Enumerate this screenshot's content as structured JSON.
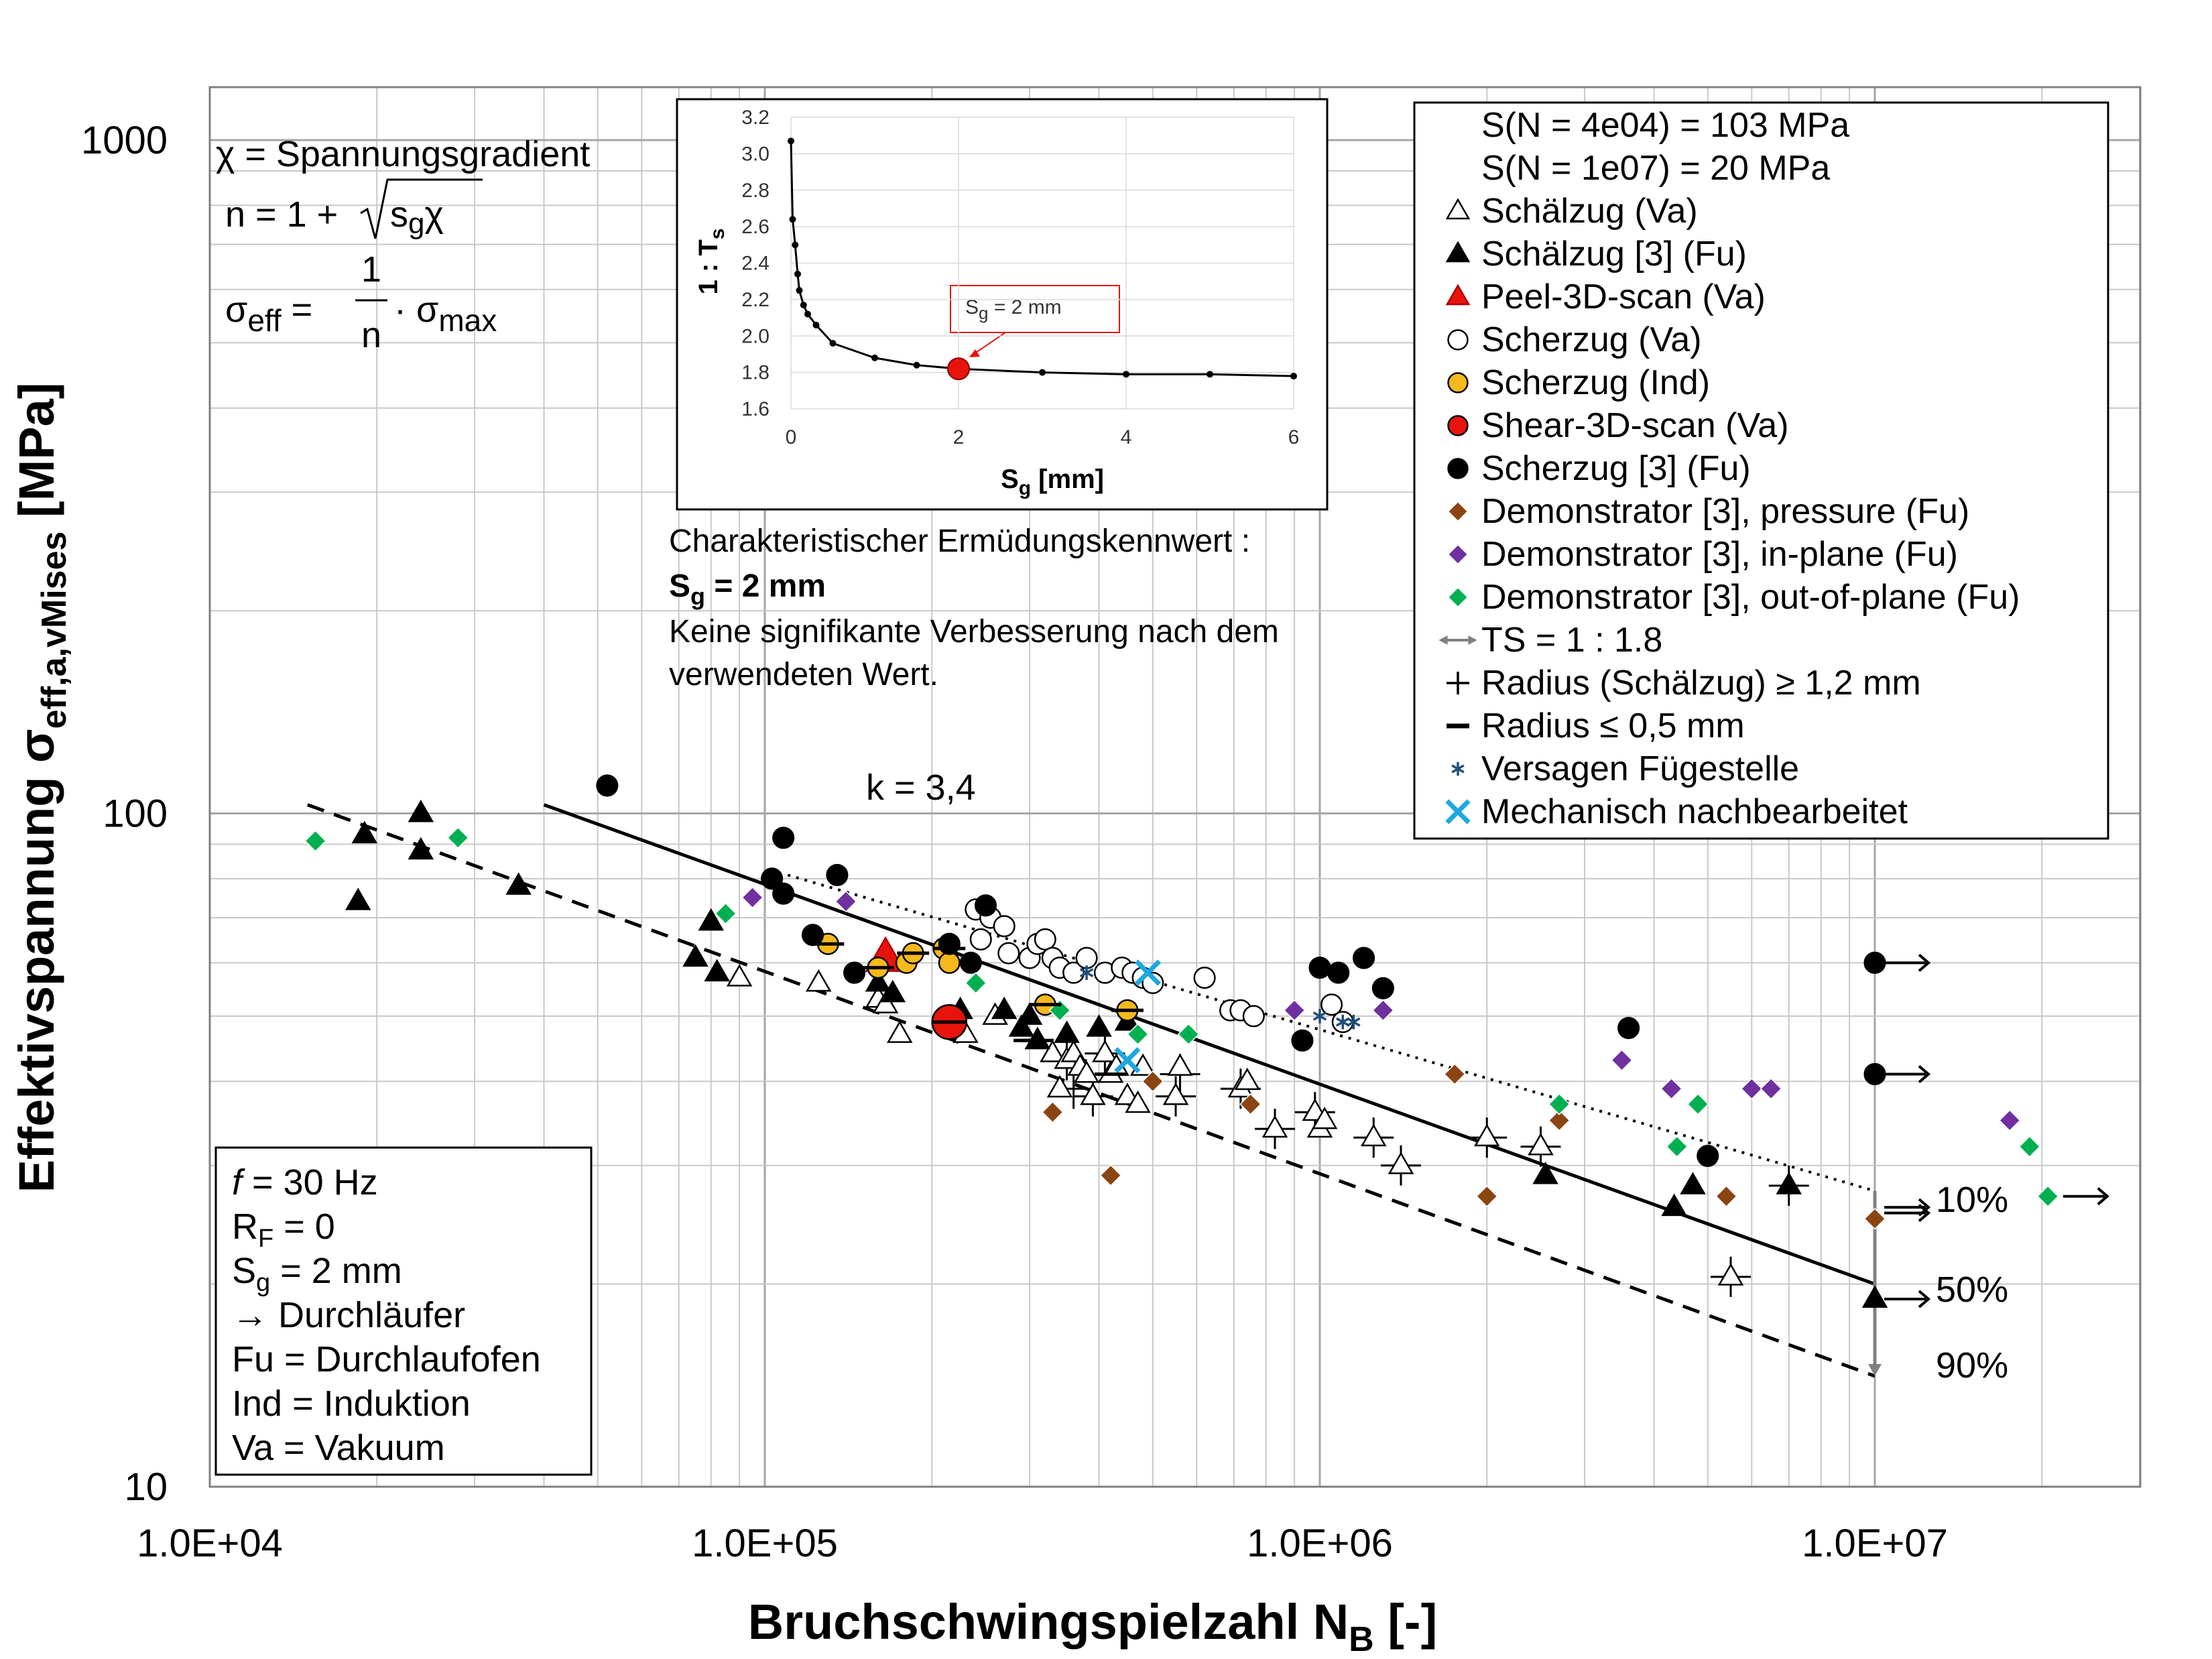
{
  "chart_data": {
    "type": "scatter",
    "x_scale": "log",
    "y_scale": "log",
    "xlabel_main": "Bruchschwingspielzahl N",
    "xlabel_sub": "B",
    "xlabel_unit": " [-]",
    "ylabel_main": "Effektivspannung σ",
    "ylabel_sub": "eff,a,vMises",
    "ylabel_unit": " [MPa]",
    "xlim": [
      10000,
      30000000
    ],
    "ylim": [
      10,
      1200
    ],
    "x_ticks": [
      10000,
      100000,
      1000000,
      10000000
    ],
    "x_tick_labels": [
      "1.0E+04",
      "1.0E+05",
      "1.0E+06",
      "1.0E+07"
    ],
    "y_ticks": [
      10,
      100,
      1000
    ],
    "y_tick_labels": [
      "10",
      "100",
      "1000"
    ],
    "grid": true,
    "lines": {
      "median": {
        "x": [
          40000,
          10000000
        ],
        "y": [
          103,
          20
        ],
        "style": "solid",
        "label": "50%"
      },
      "lower": {
        "x": [
          15000,
          10000000
        ],
        "y": [
          103,
          14.6
        ],
        "style": "dashed",
        "label": "90%"
      },
      "upper": {
        "x": [
          110000,
          10000000
        ],
        "y": [
          81,
          27.5
        ],
        "style": "dotted",
        "label": "10%"
      },
      "slope_label": "k = 3,4",
      "scatter_band": {
        "x": 10000000,
        "y_from": 27.5,
        "y_to": 14.6
      }
    },
    "series": [
      {
        "name": "Schälzug (Va)",
        "marker": "triangle-open",
        "color": "#000000",
        "points": [
          [
            90000,
            57
          ],
          [
            125000,
            56
          ],
          [
            160000,
            53
          ],
          [
            165000,
            52
          ],
          [
            175000,
            47
          ],
          [
            230000,
            47
          ],
          [
            260000,
            50
          ],
          [
            310000,
            46
          ],
          [
            330000,
            44
          ],
          [
            340000,
            39
          ],
          [
            350000,
            43
          ],
          [
            360000,
            44
          ],
          [
            370000,
            42
          ],
          [
            380000,
            41
          ],
          [
            390000,
            38
          ],
          [
            410000,
            44
          ],
          [
            420000,
            41
          ],
          [
            430000,
            42
          ],
          [
            450000,
            38
          ],
          [
            470000,
            37
          ],
          [
            480000,
            42
          ],
          [
            550000,
            38
          ],
          [
            560000,
            42
          ],
          [
            720000,
            39
          ],
          [
            740000,
            40
          ],
          [
            830000,
            34
          ],
          [
            980000,
            36
          ],
          [
            1000000,
            34
          ],
          [
            1020000,
            35
          ],
          [
            1250000,
            33
          ],
          [
            1400000,
            30
          ],
          [
            2000000,
            33
          ],
          [
            2500000,
            32
          ],
          [
            5500000,
            20.5
          ]
        ]
      },
      {
        "name": "Schälzug [3] (Fu)",
        "marker": "triangle-filled",
        "color": "#000000",
        "points": [
          [
            19000,
            93
          ],
          [
            18500,
            74
          ],
          [
            24000,
            100
          ],
          [
            24000,
            88
          ],
          [
            36000,
            78
          ],
          [
            75000,
            61
          ],
          [
            80000,
            69
          ],
          [
            82000,
            58
          ],
          [
            160000,
            56
          ],
          [
            170000,
            54
          ],
          [
            225000,
            51
          ],
          [
            270000,
            51
          ],
          [
            290000,
            48
          ],
          [
            300000,
            50
          ],
          [
            310000,
            46
          ],
          [
            350000,
            47
          ],
          [
            400000,
            48
          ],
          [
            450000,
            49
          ],
          [
            2550000,
            29
          ],
          [
            4350000,
            26
          ],
          [
            4700000,
            28
          ],
          [
            7000000,
            28
          ],
          [
            10000000,
            19
          ]
        ]
      },
      {
        "name": "Peel-3D-scan (Va)",
        "marker": "triangle-filled",
        "color": "#e8140c",
        "points": [
          [
            165000,
            61
          ]
        ]
      },
      {
        "name": "Scherzug (Va)",
        "marker": "circle-open",
        "color": "#000000",
        "points": [
          [
            240000,
            72
          ],
          [
            245000,
            65
          ],
          [
            255000,
            70
          ],
          [
            270000,
            68
          ],
          [
            275000,
            62
          ],
          [
            300000,
            61
          ],
          [
            310000,
            64
          ],
          [
            320000,
            65
          ],
          [
            330000,
            61
          ],
          [
            340000,
            59
          ],
          [
            360000,
            58
          ],
          [
            380000,
            61
          ],
          [
            410000,
            58
          ],
          [
            440000,
            59
          ],
          [
            460000,
            58
          ],
          [
            480000,
            57
          ],
          [
            500000,
            56
          ],
          [
            620000,
            57
          ],
          [
            690000,
            51
          ],
          [
            720000,
            51
          ],
          [
            760000,
            50
          ],
          [
            1050000,
            52
          ],
          [
            1100000,
            49
          ]
        ]
      },
      {
        "name": "Scherzug (Ind)",
        "marker": "circle-filled",
        "color": "#f5b91c",
        "points": [
          [
            130000,
            64
          ],
          [
            160000,
            59
          ],
          [
            180000,
            60
          ],
          [
            185000,
            62
          ],
          [
            210000,
            63
          ],
          [
            215000,
            60
          ],
          [
            320000,
            52
          ],
          [
            450000,
            51
          ]
        ]
      },
      {
        "name": "Shear-3D-scan (Va)",
        "marker": "circle-filled",
        "color": "#e8140c",
        "points": [
          [
            215000,
            49
          ]
        ]
      },
      {
        "name": "Scherzug [3] (Fu)",
        "marker": "circle-filled",
        "color": "#000000",
        "points": [
          [
            52000,
            110
          ],
          [
            108000,
            92
          ],
          [
            103000,
            80
          ],
          [
            108000,
            76
          ],
          [
            122000,
            66
          ],
          [
            135000,
            81
          ],
          [
            145000,
            58
          ],
          [
            215000,
            64
          ],
          [
            235000,
            60
          ],
          [
            250000,
            73
          ],
          [
            930000,
            46
          ],
          [
            1000000,
            59
          ],
          [
            1080000,
            58
          ],
          [
            1200000,
            61
          ],
          [
            1300000,
            55
          ],
          [
            3600000,
            48
          ],
          [
            5000000,
            31
          ],
          [
            10000000,
            60
          ],
          [
            10000000,
            41
          ]
        ]
      },
      {
        "name": "Demonstrator [3], pressure (Fu)",
        "marker": "diamond",
        "color": "#8b4513",
        "points": [
          [
            330000,
            36
          ],
          [
            420000,
            29
          ],
          [
            500000,
            40
          ],
          [
            750000,
            37
          ],
          [
            1750000,
            41
          ],
          [
            2000000,
            27
          ],
          [
            2700000,
            35
          ],
          [
            5400000,
            27
          ],
          [
            10000000,
            25
          ]
        ]
      },
      {
        "name": "Demonstrator [3], in-plane (Fu)",
        "marker": "diamond",
        "color": "#7030a0",
        "points": [
          [
            95000,
            75
          ],
          [
            140000,
            74
          ],
          [
            900000,
            51
          ],
          [
            1300000,
            51
          ],
          [
            3500000,
            43
          ],
          [
            4300000,
            39
          ],
          [
            6000000,
            39
          ],
          [
            6500000,
            39
          ],
          [
            17500000,
            35
          ]
        ]
      },
      {
        "name": "Demonstrator [3], out-of-plane (Fu)",
        "marker": "diamond",
        "color": "#00b050",
        "points": [
          [
            15500,
            91
          ],
          [
            28000,
            92
          ],
          [
            85000,
            71
          ],
          [
            240000,
            56
          ],
          [
            340000,
            51
          ],
          [
            470000,
            47
          ],
          [
            580000,
            47
          ],
          [
            2700000,
            37
          ],
          [
            4400000,
            32
          ],
          [
            4800000,
            37
          ],
          [
            19000000,
            32
          ],
          [
            20500000,
            27
          ]
        ]
      },
      {
        "name": "Versagen Fügestelle",
        "marker": "asterisk",
        "color": "#1f4e79",
        "points": [
          [
            380000,
            58
          ],
          [
            1000000,
            50
          ],
          [
            1100000,
            49
          ],
          [
            1150000,
            49
          ]
        ]
      },
      {
        "name": "Mechanisch nachbearbeitet",
        "marker": "x",
        "color": "#1ea7e1",
        "points": [
          [
            450000,
            43
          ],
          [
            490000,
            58
          ]
        ]
      }
    ],
    "runouts": [
      {
        "x": 10000000,
        "y": 60
      },
      {
        "x": 10000000,
        "y": 41
      },
      {
        "x": 10000000,
        "y": 26
      },
      {
        "x": 10000000,
        "y": 25.5
      },
      {
        "x": 10000000,
        "y": 19
      },
      {
        "x": 21000000,
        "y": 27
      }
    ],
    "radius_plus": [
      [
        5500000,
        20.5
      ],
      [
        7000000,
        28
      ],
      [
        2000000,
        33
      ],
      [
        2500000,
        32
      ],
      [
        1400000,
        30
      ],
      [
        350000,
        43
      ],
      [
        360000,
        39
      ],
      [
        390000,
        38
      ],
      [
        410000,
        44
      ],
      [
        550000,
        38
      ],
      [
        560000,
        41
      ],
      [
        720000,
        39
      ],
      [
        830000,
        34
      ],
      [
        980000,
        36
      ],
      [
        1250000,
        33
      ]
    ],
    "radius_dash": [
      [
        130000,
        64
      ],
      [
        160000,
        59
      ],
      [
        185000,
        62
      ],
      [
        215000,
        63
      ],
      [
        215000,
        49
      ],
      [
        320000,
        52
      ],
      [
        450000,
        51
      ],
      [
        300000,
        46
      ],
      [
        310000,
        46
      ],
      [
        420000,
        41
      ]
    ],
    "legend": {
      "s_n1": "S(N = 4e04) = 103 MPa",
      "s_n2": "S(N = 1e07) = 20 MPa",
      "items": [
        {
          "label": "Schälzug (Va)",
          "marker": "triangle-open",
          "color": "#000000"
        },
        {
          "label": "Schälzug [3] (Fu)",
          "marker": "triangle-filled",
          "color": "#000000"
        },
        {
          "label": "Peel-3D-scan (Va)",
          "marker": "triangle-filled",
          "color": "#e8140c"
        },
        {
          "label": "Scherzug (Va)",
          "marker": "circle-open",
          "color": "#000000"
        },
        {
          "label": "Scherzug (Ind)",
          "marker": "circle-filled",
          "color": "#f5b91c"
        },
        {
          "label": "Shear-3D-scan (Va)",
          "marker": "circle-filled",
          "color": "#e8140c"
        },
        {
          "label": "Scherzug [3] (Fu)",
          "marker": "circle-filled",
          "color": "#000000"
        },
        {
          "label": "Demonstrator [3], pressure (Fu)",
          "marker": "diamond",
          "color": "#8b4513"
        },
        {
          "label": "Demonstrator [3], in-plane (Fu)",
          "marker": "diamond",
          "color": "#7030a0"
        },
        {
          "label": "Demonstrator [3], out-of-plane (Fu)",
          "marker": "diamond",
          "color": "#00b050"
        },
        {
          "label": "TS = 1 :  1.8",
          "marker": "double-arrow",
          "color": "#808080"
        },
        {
          "label": "Radius (Schälzug) ≥ 1,2 mm",
          "marker": "plus",
          "color": "#000000"
        },
        {
          "label": "Radius ≤ 0,5 mm",
          "marker": "dash",
          "color": "#000000"
        },
        {
          "label": "Versagen Fügestelle",
          "marker": "asterisk",
          "color": "#1f4e79"
        },
        {
          "label": "Mechanisch nachbearbeitet",
          "marker": "x",
          "color": "#1ea7e1"
        }
      ]
    },
    "percent_labels": {
      "p10": "10%",
      "p50": "50%",
      "p90": "90%"
    },
    "inset": {
      "type": "line",
      "ylabel": "1 : T",
      "ylabel_sub": "s",
      "xlabel": "S",
      "xlabel_sub": "g",
      "xlabel_unit": " [mm]",
      "xlim": [
        0,
        6
      ],
      "ylim": [
        1.6,
        3.2
      ],
      "x_ticks": [
        0,
        2,
        4,
        6
      ],
      "y_ticks": [
        1.6,
        1.8,
        2.0,
        2.2,
        2.4,
        2.6,
        2.8,
        3.0,
        3.2
      ],
      "y_tick_labels": [
        "1.6",
        "1.8",
        "2.0",
        "2.2",
        "2.4",
        "2.6",
        "2.8",
        "3.0",
        "3.2"
      ],
      "x": [
        0.0,
        0.02,
        0.05,
        0.08,
        0.1,
        0.15,
        0.2,
        0.3,
        0.5,
        1.0,
        1.5,
        2.0,
        3.0,
        4.0,
        5.0,
        6.0
      ],
      "y": [
        3.07,
        2.64,
        2.5,
        2.34,
        2.25,
        2.17,
        2.12,
        2.06,
        1.96,
        1.88,
        1.84,
        1.82,
        1.8,
        1.79,
        1.79,
        1.78
      ],
      "highlight": {
        "x": 2.0,
        "y": 1.82
      },
      "callout_main": "S",
      "callout_sub": "g",
      "callout_rest": " = 2 mm",
      "highlight_color": "#e8140c"
    }
  },
  "formula_box": {
    "chi_def": "χ = Spannungsgradient",
    "n_lhs": "n = 1 + ",
    "n_radicand_main": "s",
    "n_radicand_sub": "g",
    "n_radicand_chi": "χ",
    "sigma_eff": "σ",
    "sigma_eff_sub": "eff",
    "sigma_eq": " = ",
    "frac_num": "1",
    "frac_den": "n",
    "sigma_max": " · σ",
    "sigma_max_sub": "max"
  },
  "params_box": {
    "f_var": "f",
    "f_rest": " = 30 Hz",
    "rf_main": "R",
    "rf_sub": "F",
    "rf_rest": " = 0",
    "sg_main": "S",
    "sg_sub": "g",
    "sg_rest": " = 2 mm",
    "durchlaeufer": "→ Durchläufer",
    "fu": "Fu = Durchlaufofen",
    "ind": "Ind = Induktion",
    "va": "Va = Vakuum"
  },
  "note": {
    "line1": "Charakteristischer Ermüdungskennwert :",
    "line2_main": "S",
    "line2_sub": "g",
    "line2_rest": " = 2 mm",
    "line3": "Keine signifikante Verbesserung nach dem",
    "line4": "verwendeten Wert."
  }
}
